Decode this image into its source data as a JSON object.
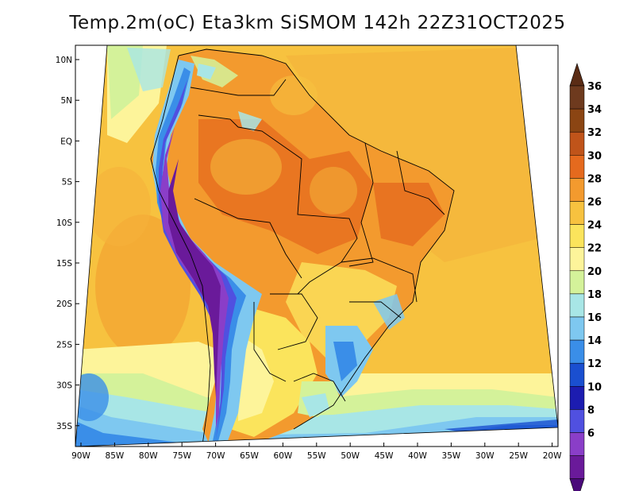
{
  "title": "Temp.2m(oC) Eta3km SiSMOM 142h 22Z31OCT2025",
  "map": {
    "lat_labels": [
      "10N",
      "5N",
      "EQ",
      "5S",
      "10S",
      "15S",
      "20S",
      "25S",
      "30S",
      "35S"
    ],
    "lon_labels": [
      "90W",
      "85W",
      "80W",
      "75W",
      "70W",
      "65W",
      "60W",
      "55W",
      "50W",
      "45W",
      "40W",
      "35W",
      "30W",
      "25W",
      "20W"
    ]
  },
  "colorbar": {
    "labels": [
      "36",
      "34",
      "32",
      "30",
      "28",
      "26",
      "24",
      "22",
      "20",
      "18",
      "16",
      "14",
      "12",
      "10",
      "8",
      "6"
    ],
    "colors": [
      "#6e3a1e",
      "#8b4513",
      "#c0541a",
      "#e56a1e",
      "#f39a2e",
      "#f7c23f",
      "#fbe45c",
      "#fdf49a",
      "#d4f29a",
      "#a8e6e6",
      "#7ec8f0",
      "#3a8ee8",
      "#1a4fd0",
      "#1c1cb0",
      "#5050e0",
      "#8a3ec8",
      "#6a1a9a"
    ],
    "top_arrow_color": "#5a2c15",
    "bottom_arrow_color": "#4a0a7a"
  }
}
